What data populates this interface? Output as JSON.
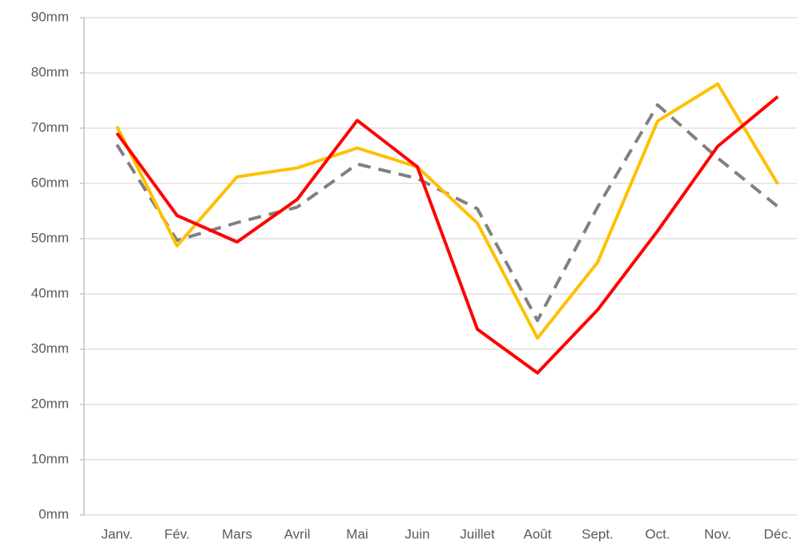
{
  "chart_data": {
    "type": "line",
    "categories": [
      "Janv.",
      "Fév.",
      "Mars",
      "Avril",
      "Mai",
      "Juin",
      "Juillet",
      "Août",
      "Sept.",
      "Oct.",
      "Nov.",
      "Déc."
    ],
    "series": [
      {
        "color": "#808080",
        "dash": true,
        "values": [
          67,
          49.7,
          52.9,
          55.7,
          63.5,
          60.9,
          55.4,
          35.2,
          55.7,
          74.2,
          64.6,
          55.8
        ]
      },
      {
        "color": "#FFC000",
        "dash": false,
        "values": [
          70.3,
          48.7,
          61.2,
          62.8,
          66.4,
          63,
          52.8,
          32,
          45.7,
          71.3,
          78,
          59.9
        ]
      },
      {
        "color": "#FF0000",
        "dash": false,
        "values": [
          69.1,
          54.2,
          49.4,
          57.1,
          71.4,
          63,
          33.6,
          25.7,
          37.1,
          51.4,
          66.7,
          75.7
        ]
      }
    ],
    "ylim": [
      0,
      90
    ],
    "yticks": [
      {
        "value": 0,
        "label": "0mm"
      },
      {
        "value": 10,
        "label": "10mm"
      },
      {
        "value": 20,
        "label": "20mm"
      },
      {
        "value": 30,
        "label": "30mm"
      },
      {
        "value": 40,
        "label": "40mm"
      },
      {
        "value": 50,
        "label": "50mm"
      },
      {
        "value": 60,
        "label": "60mm"
      },
      {
        "value": 70,
        "label": "70mm"
      },
      {
        "value": 80,
        "label": "80mm"
      },
      {
        "value": 90,
        "label": "90mm"
      }
    ],
    "grid": true
  }
}
